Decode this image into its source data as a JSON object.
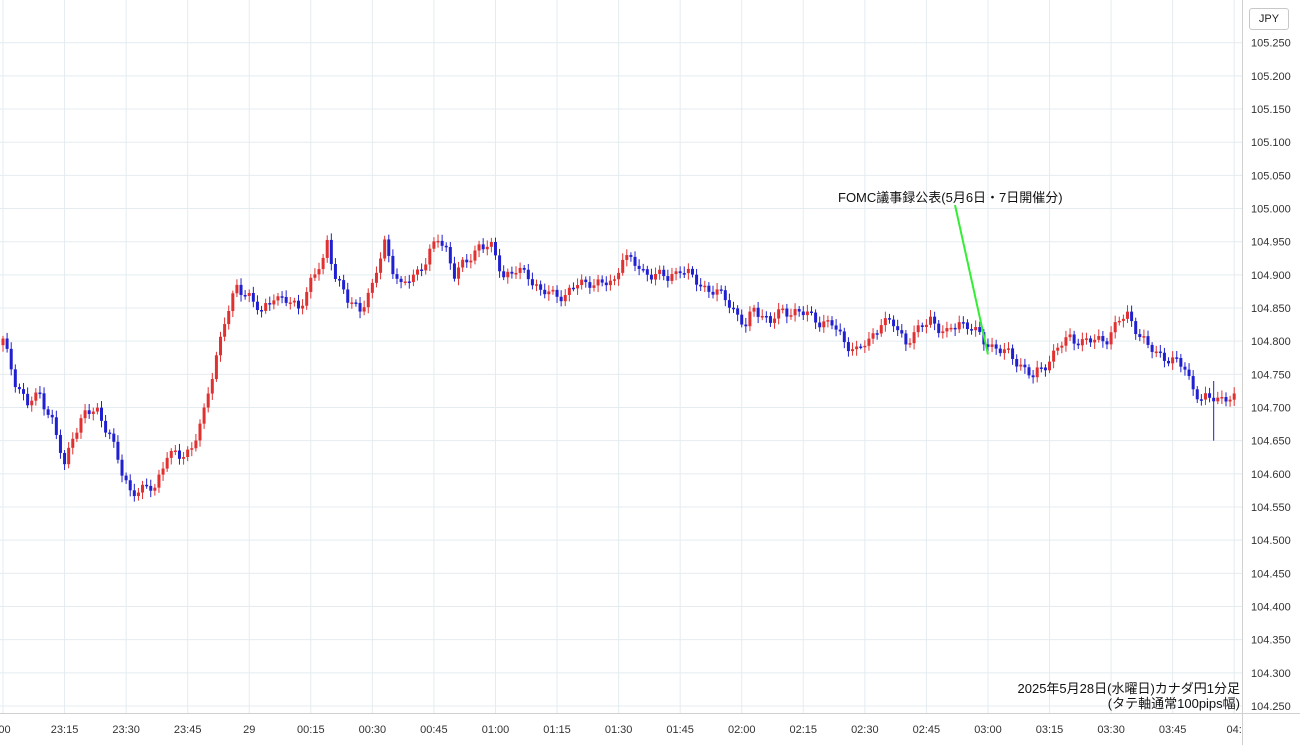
{
  "currency": "JPY",
  "caption": {
    "line1": "2025年5月28日(水曜日)カナダ円1分足",
    "line2": "(タテ軸通常100pips幅)"
  },
  "colors": {
    "up": "#e03030",
    "down": "#2020d0",
    "annotation_line": "#33ee33",
    "grid": "#e4ecf0",
    "axis_text": "#333333"
  },
  "chart_data": {
    "type": "candlestick",
    "title": "",
    "xlabel": "",
    "ylabel": "",
    "ylim": [
      104.24,
      105.27
    ],
    "y_ticks": [
      104.25,
      104.3,
      104.35,
      104.4,
      104.45,
      104.5,
      104.55,
      104.6,
      104.65,
      104.7,
      104.75,
      104.8,
      104.85,
      104.9,
      104.95,
      105.0,
      105.05,
      105.1,
      105.15,
      105.2,
      105.25
    ],
    "y_tick_labels": [
      "104.250",
      "104.300",
      "104.350",
      "104.400",
      "104.450",
      "104.500",
      "104.550",
      "104.600",
      "104.650",
      "104.700",
      "104.750",
      "104.800",
      "104.850",
      "104.900",
      "104.950",
      "105.000",
      "105.050",
      "105.100",
      "105.150",
      "105.200",
      "105.250"
    ],
    "x_ticks": [
      {
        "minute": 0,
        "label": ":00"
      },
      {
        "minute": 15,
        "label": "23:15"
      },
      {
        "minute": 30,
        "label": "23:30"
      },
      {
        "minute": 45,
        "label": "23:45"
      },
      {
        "minute": 60,
        "label": "29"
      },
      {
        "minute": 75,
        "label": "00:15"
      },
      {
        "minute": 90,
        "label": "00:30"
      },
      {
        "minute": 105,
        "label": "00:45"
      },
      {
        "minute": 120,
        "label": "01:00"
      },
      {
        "minute": 135,
        "label": "01:15"
      },
      {
        "minute": 150,
        "label": "01:30"
      },
      {
        "minute": 165,
        "label": "01:45"
      },
      {
        "minute": 180,
        "label": "02:00"
      },
      {
        "minute": 195,
        "label": "02:15"
      },
      {
        "minute": 210,
        "label": "02:30"
      },
      {
        "minute": 225,
        "label": "02:45"
      },
      {
        "minute": 240,
        "label": "03:00"
      },
      {
        "minute": 255,
        "label": "03:15"
      },
      {
        "minute": 270,
        "label": "03:30"
      },
      {
        "minute": 285,
        "label": "03:45"
      },
      {
        "minute": 300,
        "label": "04:"
      }
    ],
    "close_keypoints": [
      [
        0,
        104.8
      ],
      [
        3,
        104.74
      ],
      [
        6,
        104.705
      ],
      [
        9,
        104.72
      ],
      [
        12,
        104.68
      ],
      [
        15,
        104.61
      ],
      [
        17,
        104.66
      ],
      [
        20,
        104.69
      ],
      [
        23,
        104.695
      ],
      [
        26,
        104.66
      ],
      [
        29,
        104.6
      ],
      [
        31,
        104.575
      ],
      [
        34,
        104.575
      ],
      [
        37,
        104.58
      ],
      [
        40,
        104.63
      ],
      [
        43,
        104.625
      ],
      [
        46,
        104.64
      ],
      [
        49,
        104.69
      ],
      [
        52,
        104.78
      ],
      [
        54,
        104.83
      ],
      [
        57,
        104.88
      ],
      [
        60,
        104.87
      ],
      [
        63,
        104.84
      ],
      [
        66,
        104.87
      ],
      [
        69,
        104.86
      ],
      [
        72,
        104.85
      ],
      [
        75,
        104.89
      ],
      [
        78,
        104.92
      ],
      [
        79,
        104.95
      ],
      [
        81,
        104.9
      ],
      [
        84,
        104.86
      ],
      [
        87,
        104.85
      ],
      [
        90,
        104.88
      ],
      [
        93,
        104.95
      ],
      [
        95,
        104.91
      ],
      [
        97,
        104.88
      ],
      [
        100,
        104.9
      ],
      [
        103,
        104.92
      ],
      [
        106,
        104.955
      ],
      [
        108,
        104.94
      ],
      [
        110,
        104.9
      ],
      [
        113,
        104.92
      ],
      [
        116,
        104.945
      ],
      [
        119,
        104.94
      ],
      [
        122,
        104.9
      ],
      [
        125,
        104.905
      ],
      [
        128,
        104.9
      ],
      [
        131,
        104.875
      ],
      [
        134,
        104.87
      ],
      [
        137,
        104.87
      ],
      [
        140,
        104.885
      ],
      [
        143,
        104.89
      ],
      [
        146,
        104.885
      ],
      [
        149,
        104.89
      ],
      [
        151,
        104.93
      ],
      [
        153,
        104.92
      ],
      [
        156,
        104.905
      ],
      [
        159,
        104.9
      ],
      [
        162,
        104.895
      ],
      [
        165,
        104.91
      ],
      [
        167,
        104.9
      ],
      [
        170,
        104.885
      ],
      [
        173,
        104.875
      ],
      [
        176,
        104.865
      ],
      [
        179,
        104.84
      ],
      [
        181,
        104.82
      ],
      [
        183,
        104.85
      ],
      [
        185,
        104.84
      ],
      [
        187,
        104.83
      ],
      [
        190,
        104.845
      ],
      [
        193,
        104.845
      ],
      [
        196,
        104.84
      ],
      [
        199,
        104.83
      ],
      [
        202,
        104.825
      ],
      [
        205,
        104.8
      ],
      [
        208,
        104.785
      ],
      [
        211,
        104.8
      ],
      [
        214,
        104.83
      ],
      [
        217,
        104.825
      ],
      [
        220,
        104.8
      ],
      [
        223,
        104.815
      ],
      [
        226,
        104.835
      ],
      [
        228,
        104.82
      ],
      [
        230,
        104.81
      ],
      [
        233,
        104.83
      ],
      [
        236,
        104.82
      ],
      [
        239,
        104.8
      ],
      [
        242,
        104.79
      ],
      [
        245,
        104.78
      ],
      [
        248,
        104.765
      ],
      [
        251,
        104.745
      ],
      [
        254,
        104.765
      ],
      [
        257,
        104.79
      ],
      [
        260,
        104.805
      ],
      [
        263,
        104.8
      ],
      [
        266,
        104.8
      ],
      [
        269,
        104.805
      ],
      [
        272,
        104.83
      ],
      [
        274,
        104.84
      ],
      [
        276,
        104.82
      ],
      [
        279,
        104.79
      ],
      [
        282,
        104.78
      ],
      [
        285,
        104.77
      ],
      [
        288,
        104.76
      ],
      [
        290,
        104.73
      ],
      [
        292,
        104.71
      ],
      [
        295,
        104.715
      ],
      [
        298,
        104.715
      ],
      [
        300,
        104.712
      ]
    ],
    "notable_wicks": [
      [
        295,
        104.65,
        104.74
      ]
    ],
    "annotations": [
      {
        "text": "FOMC議事録公表(5月6日・7日開催分)",
        "minute": 240,
        "price": 104.78
      }
    ]
  }
}
